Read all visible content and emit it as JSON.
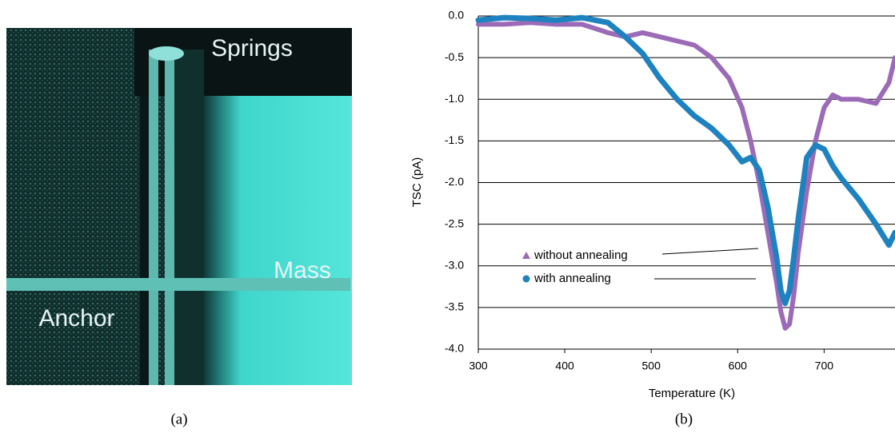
{
  "panel_a": {
    "labels": {
      "springs": "Springs",
      "mass": "Mass",
      "anchor": "Anchor"
    }
  },
  "captions": [
    "(a)",
    "(b)"
  ],
  "chart_data": {
    "type": "line",
    "xlabel": "Temperature (K)",
    "ylabel": "TSC (pA)",
    "x": [
      300,
      330,
      360,
      390,
      420,
      450,
      470,
      490,
      510,
      530,
      550,
      570,
      590,
      605,
      615,
      625,
      635,
      645,
      650,
      655,
      660,
      665,
      670,
      680,
      690,
      700,
      710,
      720,
      740,
      760,
      775,
      782
    ],
    "series": [
      {
        "name": "without annealing",
        "color": "#9b6bb8",
        "values": [
          -0.1,
          -0.1,
          -0.08,
          -0.1,
          -0.1,
          -0.2,
          -0.25,
          -0.2,
          -0.25,
          -0.3,
          -0.35,
          -0.5,
          -0.75,
          -1.1,
          -1.5,
          -2.0,
          -2.6,
          -3.2,
          -3.55,
          -3.75,
          -3.7,
          -3.35,
          -2.85,
          -2.1,
          -1.5,
          -1.1,
          -0.95,
          -1.0,
          -1.0,
          -1.05,
          -0.8,
          -0.5
        ]
      },
      {
        "name": "with annealing",
        "color": "#1f82c0",
        "values": [
          -0.05,
          -0.02,
          -0.03,
          -0.05,
          -0.02,
          -0.08,
          -0.25,
          -0.45,
          -0.75,
          -1.0,
          -1.2,
          -1.35,
          -1.55,
          -1.75,
          -1.7,
          -1.85,
          -2.3,
          -2.9,
          -3.3,
          -3.45,
          -3.3,
          -2.9,
          -2.45,
          -1.7,
          -1.55,
          -1.6,
          -1.8,
          -1.95,
          -2.2,
          -2.5,
          -2.75,
          -2.6
        ]
      }
    ],
    "xlim": [
      300,
      782
    ],
    "ylim": [
      -4,
      0
    ],
    "xticks": [
      300,
      400,
      500,
      600,
      700
    ],
    "yticks": [
      {
        "value": 0,
        "label": "0.0"
      },
      -0.5,
      {
        "value": -1,
        "label": "-1.0"
      },
      -1.5,
      {
        "value": -2,
        "label": "-2.0"
      },
      -2.5,
      {
        "value": -3,
        "label": "-3.0"
      },
      -3.5,
      {
        "value": -4,
        "label": "-4.0"
      }
    ],
    "grid": true
  }
}
